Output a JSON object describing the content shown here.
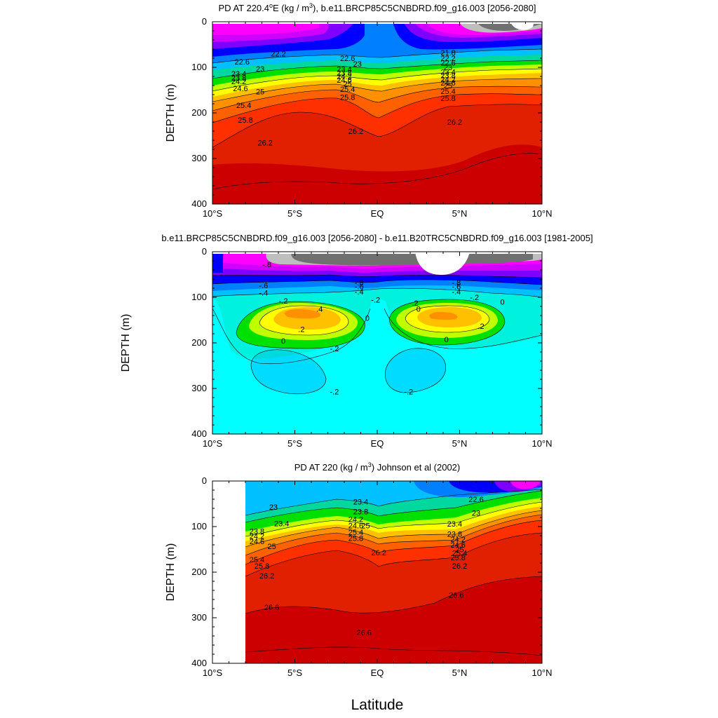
{
  "figure": {
    "xlabel": "Latitude",
    "colors": {
      "levels": [
        "#cc0000",
        "#e02000",
        "#ff3000",
        "#ff6000",
        "#ff9000",
        "#ffc000",
        "#ffff00",
        "#c0ff00",
        "#00e000",
        "#00d8a0",
        "#00c0ff",
        "#0080ff",
        "#0000ff",
        "#8000ff",
        "#d000ff",
        "#ff00ff",
        "#bebebe",
        "#707070"
      ]
    }
  },
  "chart_data": [
    {
      "type": "heatmap",
      "title_parts": [
        "PD AT 220.4",
        "o",
        "E (kg / m",
        "3",
        "), b.e11.BRCP85C5CNBDRD.f09_g16.003 [2056-2080]"
      ],
      "ylabel": "DEPTH (m)",
      "x": {
        "ticks": [
          -10,
          -5,
          0,
          5,
          10
        ],
        "tick_labels": [
          "10°S",
          "5°S",
          "EQ",
          "5°N",
          "10°N"
        ],
        "range": [
          -10,
          10
        ]
      },
      "y": {
        "ticks": [
          0,
          100,
          200,
          300,
          400
        ],
        "tick_labels": [
          "0",
          "100",
          "200",
          "300",
          "400"
        ],
        "range": [
          0,
          400
        ],
        "reversed": true
      },
      "contour_labels": [
        {
          "text": "22.2",
          "x": -6.0,
          "y": 70
        },
        {
          "text": "22.6",
          "x": -8.2,
          "y": 88
        },
        {
          "text": "23",
          "x": -7.1,
          "y": 103
        },
        {
          "text": "23.4",
          "x": -8.4,
          "y": 114
        },
        {
          "text": "23.8",
          "x": -8.4,
          "y": 123
        },
        {
          "text": "24.2",
          "x": -8.4,
          "y": 131
        },
        {
          "text": "24.6",
          "x": -8.3,
          "y": 146
        },
        {
          "text": "25",
          "x": -7.1,
          "y": 153
        },
        {
          "text": "25.4",
          "x": -8.1,
          "y": 183
        },
        {
          "text": "25.8",
          "x": -8.0,
          "y": 215
        },
        {
          "text": "26.2",
          "x": -6.8,
          "y": 265
        },
        {
          "text": "22.6",
          "x": -1.8,
          "y": 80
        },
        {
          "text": "23",
          "x": -1.2,
          "y": 92
        },
        {
          "text": "23.4",
          "x": -2.0,
          "y": 104
        },
        {
          "text": "23.8",
          "x": -2.0,
          "y": 112
        },
        {
          "text": "24.2",
          "x": -2.0,
          "y": 120
        },
        {
          "text": "24.6",
          "x": -2.0,
          "y": 128
        },
        {
          "text": "25",
          "x": -1.8,
          "y": 136
        },
        {
          "text": "25.4",
          "x": -1.8,
          "y": 148
        },
        {
          "text": "25.8",
          "x": -1.8,
          "y": 165
        },
        {
          "text": "26.2",
          "x": -1.3,
          "y": 240
        },
        {
          "text": "21.8",
          "x": 4.3,
          "y": 68
        },
        {
          "text": "22.2",
          "x": 4.3,
          "y": 80
        },
        {
          "text": "22.6",
          "x": 4.3,
          "y": 90
        },
        {
          "text": "23",
          "x": 4.3,
          "y": 100
        },
        {
          "text": "23.4",
          "x": 4.3,
          "y": 110
        },
        {
          "text": "23.8",
          "x": 4.3,
          "y": 118
        },
        {
          "text": "24.2",
          "x": 4.3,
          "y": 126
        },
        {
          "text": "24.6",
          "x": 4.3,
          "y": 134
        },
        {
          "text": "25",
          "x": 4.3,
          "y": 140
        },
        {
          "text": "25.4",
          "x": 4.3,
          "y": 152
        },
        {
          "text": "25.8",
          "x": 4.3,
          "y": 168
        },
        {
          "text": "26.2",
          "x": 4.7,
          "y": 220
        }
      ]
    },
    {
      "type": "heatmap",
      "title": "b.e11.BRCP85C5CNBDRD.f09_g16.003 [2056-2080] - b.e11.B20TRC5CNBDRD.f09_g16.003 [1981-2005]",
      "ylabel": "DEPTH (m)",
      "x": {
        "ticks": [
          -10,
          -5,
          0,
          5,
          10
        ],
        "tick_labels": [
          "10°S",
          "5°S",
          "EQ",
          "5°N",
          "10°N"
        ],
        "range": [
          -10,
          10
        ]
      },
      "y": {
        "ticks": [
          0,
          100,
          200,
          300,
          400
        ],
        "tick_labels": [
          "0",
          "100",
          "200",
          "300",
          "400"
        ],
        "range": [
          0,
          400
        ],
        "reversed": true
      },
      "contour_labels": [
        {
          "text": "-.8",
          "x": -6.7,
          "y": 28
        },
        {
          "text": "-.6",
          "x": -6.9,
          "y": 74
        },
        {
          "text": "-.4",
          "x": -6.9,
          "y": 90
        },
        {
          "text": "-.2",
          "x": -5.7,
          "y": 108
        },
        {
          "text": ".4",
          "x": -3.5,
          "y": 125
        },
        {
          "text": ".2",
          "x": -4.6,
          "y": 170
        },
        {
          "text": "0",
          "x": -5.7,
          "y": 195
        },
        {
          "text": "0",
          "x": -0.6,
          "y": 145
        },
        {
          "text": "-.8",
          "x": -1.1,
          "y": 68
        },
        {
          "text": "-.6",
          "x": -1.1,
          "y": 76
        },
        {
          "text": "-.4",
          "x": -1.1,
          "y": 88
        },
        {
          "text": "-.2",
          "x": -0.1,
          "y": 105
        },
        {
          "text": ".2",
          "x": 2.3,
          "y": 112
        },
        {
          "text": "0",
          "x": 2.5,
          "y": 125
        },
        {
          "text": "-.8",
          "x": 4.8,
          "y": 68
        },
        {
          "text": "-.6",
          "x": 4.8,
          "y": 76
        },
        {
          "text": "-.4",
          "x": 4.8,
          "y": 88
        },
        {
          "text": "-.2",
          "x": 5.9,
          "y": 100
        },
        {
          "text": "0",
          "x": 7.6,
          "y": 110
        },
        {
          "text": ".2",
          "x": 6.3,
          "y": 163
        },
        {
          "text": "0",
          "x": 4.2,
          "y": 192
        },
        {
          "text": "-.2",
          "x": -2.6,
          "y": 212
        },
        {
          "text": "-.2",
          "x": -2.6,
          "y": 307
        },
        {
          "text": "-.2",
          "x": 1.9,
          "y": 307
        }
      ]
    },
    {
      "type": "heatmap",
      "title_parts": [
        "PD AT 220 (kg / m",
        "3",
        ") Johnson et al (2002)"
      ],
      "ylabel": "DEPTH (m)",
      "x": {
        "ticks": [
          -10,
          -5,
          0,
          5,
          10
        ],
        "tick_labels": [
          "10°S",
          "5°S",
          "EQ",
          "5°N",
          "10°N"
        ],
        "range": [
          -10,
          10
        ]
      },
      "y": {
        "ticks": [
          0,
          100,
          200,
          300,
          400
        ],
        "tick_labels": [
          "0",
          "100",
          "200",
          "300",
          "400"
        ],
        "range": [
          0,
          400
        ],
        "reversed": true
      },
      "data_start_x": -8.0,
      "contour_labels": [
        {
          "text": "23",
          "x": -6.3,
          "y": 57
        },
        {
          "text": "23.4",
          "x": -5.8,
          "y": 93
        },
        {
          "text": "23.8",
          "x": -7.3,
          "y": 110
        },
        {
          "text": "24.2",
          "x": -7.3,
          "y": 121
        },
        {
          "text": "24.6",
          "x": -7.3,
          "y": 132
        },
        {
          "text": "25",
          "x": -6.4,
          "y": 143
        },
        {
          "text": "25.4",
          "x": -7.3,
          "y": 172
        },
        {
          "text": "25.8",
          "x": -7.0,
          "y": 186
        },
        {
          "text": "26.2",
          "x": -6.7,
          "y": 208
        },
        {
          "text": "26.6",
          "x": -6.4,
          "y": 277
        },
        {
          "text": "23.4",
          "x": -1.0,
          "y": 45
        },
        {
          "text": "23.8",
          "x": -1.0,
          "y": 67
        },
        {
          "text": "24.2",
          "x": -1.3,
          "y": 84
        },
        {
          "text": "24.6",
          "x": -1.3,
          "y": 98
        },
        {
          "text": "25",
          "x": -0.7,
          "y": 98
        },
        {
          "text": "25.4",
          "x": -1.3,
          "y": 112
        },
        {
          "text": "25.8",
          "x": -1.3,
          "y": 125
        },
        {
          "text": "26.2",
          "x": 0.1,
          "y": 157
        },
        {
          "text": "26.6",
          "x": -0.8,
          "y": 332
        },
        {
          "text": "22.6",
          "x": 6.0,
          "y": 40
        },
        {
          "text": "23",
          "x": 6.0,
          "y": 70
        },
        {
          "text": "23.4",
          "x": 4.7,
          "y": 94
        },
        {
          "text": "23.8",
          "x": 4.7,
          "y": 116
        },
        {
          "text": "24.2",
          "x": 4.9,
          "y": 128
        },
        {
          "text": "24.6",
          "x": 4.9,
          "y": 140
        },
        {
          "text": "25",
          "x": 5.0,
          "y": 150
        },
        {
          "text": "25.4",
          "x": 5.0,
          "y": 158
        },
        {
          "text": "25.8",
          "x": 4.9,
          "y": 168
        },
        {
          "text": "26.2",
          "x": 5.0,
          "y": 186
        },
        {
          "text": "26.6",
          "x": 4.8,
          "y": 250
        }
      ]
    }
  ]
}
